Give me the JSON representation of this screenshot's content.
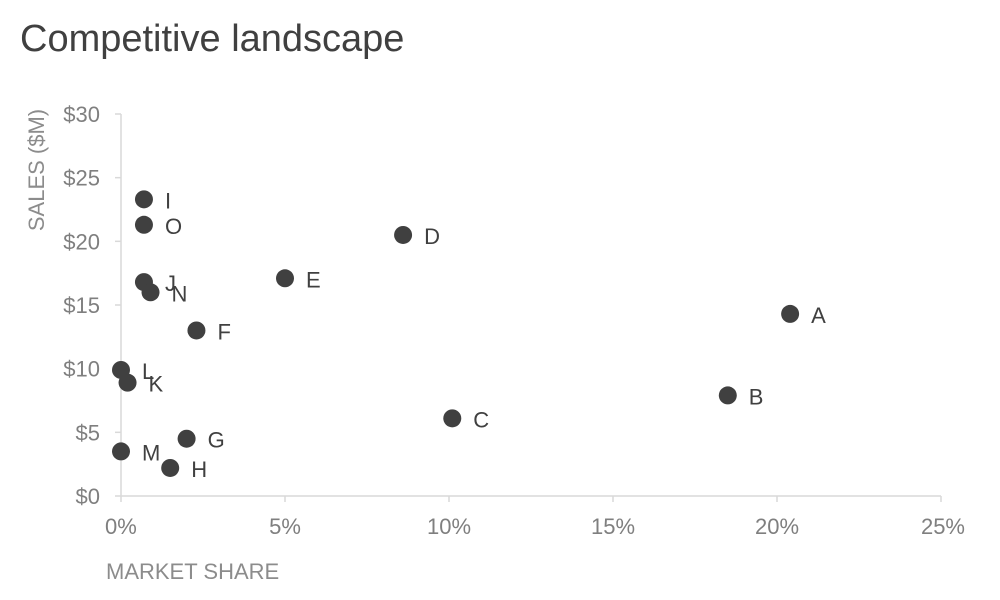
{
  "chart_data": {
    "type": "scatter",
    "title": "Competitive landscape",
    "xlabel": "MARKET SHARE",
    "ylabel": "SALES ($M)",
    "xlim": [
      0,
      25
    ],
    "ylim": [
      0,
      30
    ],
    "x_unit": "%",
    "y_unit": "$M",
    "x_ticks": [
      "0%",
      "5%",
      "10%",
      "15%",
      "20%",
      "25%"
    ],
    "y_ticks": [
      "$0",
      "$5",
      "$10",
      "$15",
      "$20",
      "$25",
      "$30"
    ],
    "grid": false,
    "marker_color": "#404040",
    "points": [
      {
        "label": "A",
        "x": 20.4,
        "y": 14.3
      },
      {
        "label": "B",
        "x": 18.5,
        "y": 7.9
      },
      {
        "label": "C",
        "x": 10.1,
        "y": 6.1
      },
      {
        "label": "D",
        "x": 8.6,
        "y": 20.5
      },
      {
        "label": "E",
        "x": 5.0,
        "y": 17.1
      },
      {
        "label": "F",
        "x": 2.3,
        "y": 13.0
      },
      {
        "label": "G",
        "x": 2.0,
        "y": 4.5
      },
      {
        "label": "H",
        "x": 1.5,
        "y": 2.2
      },
      {
        "label": "I",
        "x": 0.7,
        "y": 23.3
      },
      {
        "label": "J",
        "x": 0.7,
        "y": 16.8
      },
      {
        "label": "K",
        "x": 0.2,
        "y": 8.9
      },
      {
        "label": "L",
        "x": 0.0,
        "y": 9.9
      },
      {
        "label": "M",
        "x": 0.0,
        "y": 3.5
      },
      {
        "label": "N",
        "x": 0.9,
        "y": 16.0
      },
      {
        "label": "O",
        "x": 0.7,
        "y": 21.3
      }
    ]
  }
}
